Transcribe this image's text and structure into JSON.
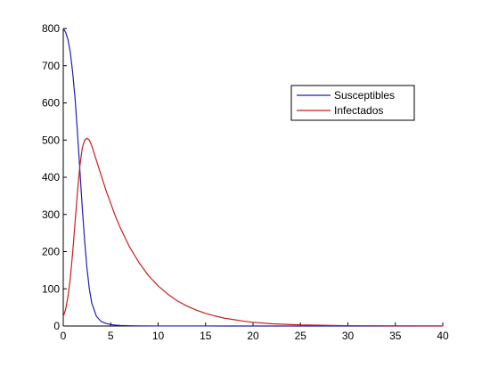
{
  "chart_data": {
    "type": "line",
    "title": "",
    "xlabel": "",
    "ylabel": "",
    "xlim": [
      0,
      40
    ],
    "ylim": [
      0,
      800
    ],
    "xticks": [
      0,
      5,
      10,
      15,
      20,
      25,
      30,
      35,
      40
    ],
    "yticks": [
      0,
      100,
      200,
      300,
      400,
      500,
      600,
      700,
      800
    ],
    "grid": false,
    "legend_position": "top-right",
    "series": [
      {
        "name": "Susceptibles",
        "color": "#1f1fb8",
        "x": [
          0,
          0.25,
          0.5,
          0.75,
          1.0,
          1.25,
          1.5,
          1.75,
          2.0,
          2.25,
          2.5,
          2.75,
          3.0,
          3.5,
          4.0,
          4.5,
          5.0,
          5.5,
          6.0,
          7.0,
          8.0,
          10,
          15,
          20,
          25,
          30,
          35,
          40
        ],
        "y": [
          800,
          790,
          770,
          735,
          680,
          610,
          520,
          420,
          320,
          230,
          155,
          100,
          62,
          26,
          12,
          7,
          4,
          2.5,
          1.5,
          0.8,
          0.4,
          0.2,
          0.1,
          0.05,
          0.02,
          0.01,
          0.01,
          0
        ]
      },
      {
        "name": "Infectados",
        "color": "#c81e1e",
        "x": [
          0,
          0.25,
          0.5,
          0.75,
          1.0,
          1.25,
          1.5,
          1.75,
          2.0,
          2.25,
          2.5,
          2.75,
          3.0,
          3.25,
          3.5,
          4.0,
          4.5,
          5.0,
          5.5,
          6.0,
          7.0,
          8.0,
          9.0,
          10,
          11,
          12,
          13,
          14,
          15,
          16,
          17,
          18,
          19,
          20,
          22,
          25,
          30,
          35,
          40
        ],
        "y": [
          25,
          45,
          80,
          130,
          200,
          280,
          360,
          430,
          478,
          500,
          505,
          500,
          485,
          465,
          445,
          405,
          365,
          330,
          295,
          265,
          212,
          170,
          135,
          108,
          86,
          68,
          54,
          43,
          34,
          27,
          21,
          17,
          13,
          10,
          6,
          3,
          1,
          0.5,
          0.2
        ]
      }
    ]
  }
}
